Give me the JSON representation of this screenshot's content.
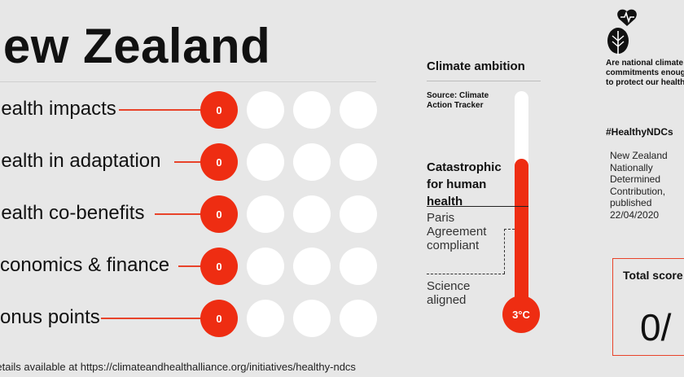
{
  "title": "New Zealand",
  "rows": [
    {
      "label": "Health impacts",
      "score": "0"
    },
    {
      "label": "Health in adaptation",
      "score": "0"
    },
    {
      "label": "Health co-benefits",
      "score": "0"
    },
    {
      "label": "Economics & finance",
      "score": "0"
    },
    {
      "label": "Bonus points",
      "score": "0"
    }
  ],
  "footer": "Details available at https://climateandhealthalliance.org/initiatives/healthy-ndcs",
  "climate_ambition": {
    "title": "Climate ambition",
    "source": "Source: Climate Action Tracker",
    "catastrophic": "Catastrophic for human health",
    "paris": "Paris Agreement compliant",
    "science": "Science aligned",
    "temperature": "3°C"
  },
  "sidebar": {
    "question": "Are national climate commitments enough to protect our health?",
    "hashtag": "#HealthyNDCs",
    "ndc_info": "New Zealand Nationally Determined Contribution, published 22/04/2020"
  },
  "total_score": {
    "label": "Total score",
    "value": "0/"
  },
  "colors": {
    "accent": "#ee2d12",
    "background": "#e7e7e7",
    "empty_dot": "#ffffff"
  }
}
